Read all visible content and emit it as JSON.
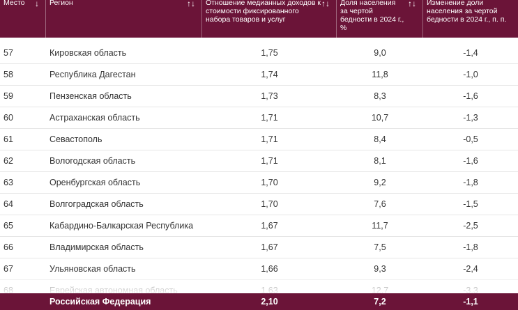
{
  "table": {
    "headers": {
      "rank": "Место",
      "region": "Регион",
      "ratio": "Отношение медианных доходов к стоимости фиксированного набора товаров и услуг",
      "share": "Доля населения за чертой бедности в 2024 г., %",
      "change": "Изменение доли населения за чертой бедности в 2024 г., п. п."
    },
    "sort_icons": {
      "rank": "↓",
      "other": "↑↓"
    },
    "rows": [
      {
        "rank": "57",
        "region": "Кировская область",
        "ratio": "1,75",
        "share": "9,0",
        "change": "-1,4"
      },
      {
        "rank": "58",
        "region": "Республика Дагестан",
        "ratio": "1,74",
        "share": "11,8",
        "change": "-1,0"
      },
      {
        "rank": "59",
        "region": "Пензенская область",
        "ratio": "1,73",
        "share": "8,3",
        "change": "-1,6"
      },
      {
        "rank": "60",
        "region": "Астраханская область",
        "ratio": "1,71",
        "share": "10,7",
        "change": "-1,3"
      },
      {
        "rank": "61",
        "region": "Севастополь",
        "ratio": "1,71",
        "share": "8,4",
        "change": "-0,5"
      },
      {
        "rank": "62",
        "region": "Вологодская область",
        "ratio": "1,71",
        "share": "8,1",
        "change": "-1,6"
      },
      {
        "rank": "63",
        "region": "Оренбургская область",
        "ratio": "1,70",
        "share": "9,2",
        "change": "-1,8"
      },
      {
        "rank": "64",
        "region": "Волгоградская область",
        "ratio": "1,70",
        "share": "7,6",
        "change": "-1,5"
      },
      {
        "rank": "65",
        "region": "Кабардино-Балкарская Республика",
        "ratio": "1,67",
        "share": "11,7",
        "change": "-2,5"
      },
      {
        "rank": "66",
        "region": "Владимирская область",
        "ratio": "1,67",
        "share": "7,5",
        "change": "-1,8"
      },
      {
        "rank": "67",
        "region": "Ульяновская область",
        "ratio": "1,66",
        "share": "9,3",
        "change": "-2,4"
      },
      {
        "rank": "68",
        "region": "Еврейская автономная область",
        "ratio": "1,63",
        "share": "12,7",
        "change": "-3,3"
      }
    ],
    "total": {
      "region": "Российская Федерация",
      "ratio": "2,10",
      "share": "7,2",
      "change": "-1,1"
    }
  },
  "colors": {
    "header_bg": "#6b1438",
    "row_divider": "#e6e6e6",
    "text": "#333333"
  }
}
